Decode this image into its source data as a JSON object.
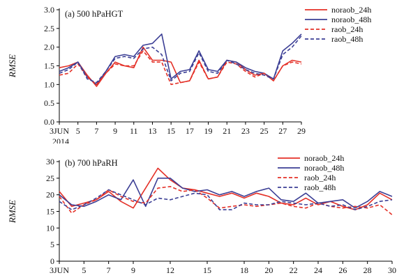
{
  "figure": {
    "background": "#ffffff",
    "axis_color": "#000000",
    "red": "#e43027",
    "blue": "#3c3f95"
  },
  "chart_data": [
    {
      "type": "line",
      "panel_label": "(a) 500 hPaHGT",
      "ylabel": "RMSE",
      "ylim": [
        0,
        3.0
      ],
      "yticks": [
        0.0,
        0.5,
        1.0,
        1.5,
        2.0,
        2.5,
        3.0
      ],
      "y_decimals": 1,
      "x_start": 3,
      "x_end": 29,
      "xtick_values": [
        3,
        5,
        7,
        9,
        11,
        13,
        15,
        17,
        19,
        21,
        23,
        25,
        27,
        29
      ],
      "x_first_label": "3JUN",
      "x_sub_label": "2014",
      "grid": false,
      "legend_position": "outside-top-right",
      "series": [
        {
          "name": "noraob_24h",
          "color": "#e43027",
          "style": "solid",
          "values": [
            1.45,
            1.5,
            1.6,
            1.25,
            0.95,
            1.3,
            1.6,
            1.5,
            1.45,
            2.0,
            1.65,
            1.65,
            1.6,
            1.05,
            1.1,
            1.65,
            1.15,
            1.2,
            1.65,
            1.6,
            1.4,
            1.25,
            1.3,
            1.1,
            1.5,
            1.65,
            1.6
          ]
        },
        {
          "name": "noraob_48h",
          "color": "#3c3f95",
          "style": "solid",
          "values": [
            1.35,
            1.45,
            1.6,
            1.2,
            1.0,
            1.35,
            1.75,
            1.8,
            1.75,
            2.05,
            2.1,
            2.35,
            1.15,
            1.35,
            1.4,
            1.9,
            1.4,
            1.35,
            1.65,
            1.6,
            1.45,
            1.35,
            1.3,
            1.15,
            1.9,
            2.1,
            2.35
          ]
        },
        {
          "name": "raob_24h",
          "color": "#e43027",
          "style": "dashed",
          "values": [
            1.25,
            1.3,
            1.55,
            1.2,
            1.0,
            1.3,
            1.55,
            1.5,
            1.5,
            1.9,
            1.6,
            1.6,
            1.0,
            1.05,
            1.1,
            1.6,
            1.15,
            1.2,
            1.6,
            1.55,
            1.35,
            1.2,
            1.3,
            1.1,
            1.5,
            1.6,
            1.55
          ]
        },
        {
          "name": "raob_48h",
          "color": "#3c3f95",
          "style": "dashed",
          "values": [
            1.3,
            1.4,
            1.6,
            1.15,
            1.05,
            1.35,
            1.7,
            1.75,
            1.7,
            1.95,
            2.0,
            1.8,
            1.1,
            1.3,
            1.35,
            1.85,
            1.35,
            1.3,
            1.65,
            1.55,
            1.4,
            1.3,
            1.25,
            1.15,
            1.8,
            2.0,
            2.3
          ]
        }
      ]
    },
    {
      "type": "line",
      "panel_label": "(b) 700 hPaRH",
      "ylabel": "RMSE",
      "ylim": [
        0,
        30
      ],
      "yticks": [
        0,
        5,
        10,
        15,
        20,
        25,
        30
      ],
      "y_decimals": 0,
      "x_start": 3,
      "x_end": 30,
      "xtick_values": [
        3,
        5,
        7,
        9,
        12,
        15,
        18,
        20,
        22,
        24,
        26,
        28,
        30
      ],
      "x_first_label": "3JUN",
      "x_sub_label": "",
      "grid": false,
      "legend_position": "inside-top-right",
      "series": [
        {
          "name": "noraob_24h",
          "color": "#e43027",
          "style": "solid",
          "values": [
            21,
            16.5,
            17.5,
            18.5,
            21,
            18,
            16,
            22,
            28,
            24.5,
            22,
            21.5,
            20.5,
            19.5,
            20.5,
            19,
            20.5,
            19.5,
            17.5,
            17,
            19,
            17,
            18,
            16.5,
            15.5,
            17,
            20.5,
            18.5
          ]
        },
        {
          "name": "noraob_48h",
          "color": "#3c3f95",
          "style": "solid",
          "values": [
            20,
            17,
            16.5,
            18,
            20,
            18.5,
            24.5,
            16.5,
            25,
            25,
            22,
            21,
            21.5,
            20,
            21,
            19.5,
            21,
            22,
            18.5,
            18,
            20.5,
            17.5,
            18,
            18.5,
            16,
            18,
            21,
            19.5
          ]
        },
        {
          "name": "raob_24h",
          "color": "#e43027",
          "style": "dashed",
          "values": [
            19.5,
            14.5,
            17,
            18.5,
            21.5,
            19.5,
            18,
            17.5,
            22,
            22.5,
            21,
            21.5,
            19,
            16,
            16.5,
            17,
            16.5,
            17,
            17.5,
            16.5,
            16,
            17.5,
            16.5,
            16,
            16.5,
            16,
            17,
            14
          ]
        },
        {
          "name": "raob_48h",
          "color": "#3c3f95",
          "style": "dashed",
          "values": [
            18,
            15.5,
            17,
            19,
            21.5,
            20,
            18.5,
            17,
            19,
            18.5,
            19.5,
            20.5,
            20,
            15.5,
            15.5,
            17.5,
            17,
            17,
            18,
            17.5,
            17,
            17.5,
            16.5,
            17,
            15.5,
            16.5,
            18,
            18.5
          ]
        }
      ]
    }
  ]
}
